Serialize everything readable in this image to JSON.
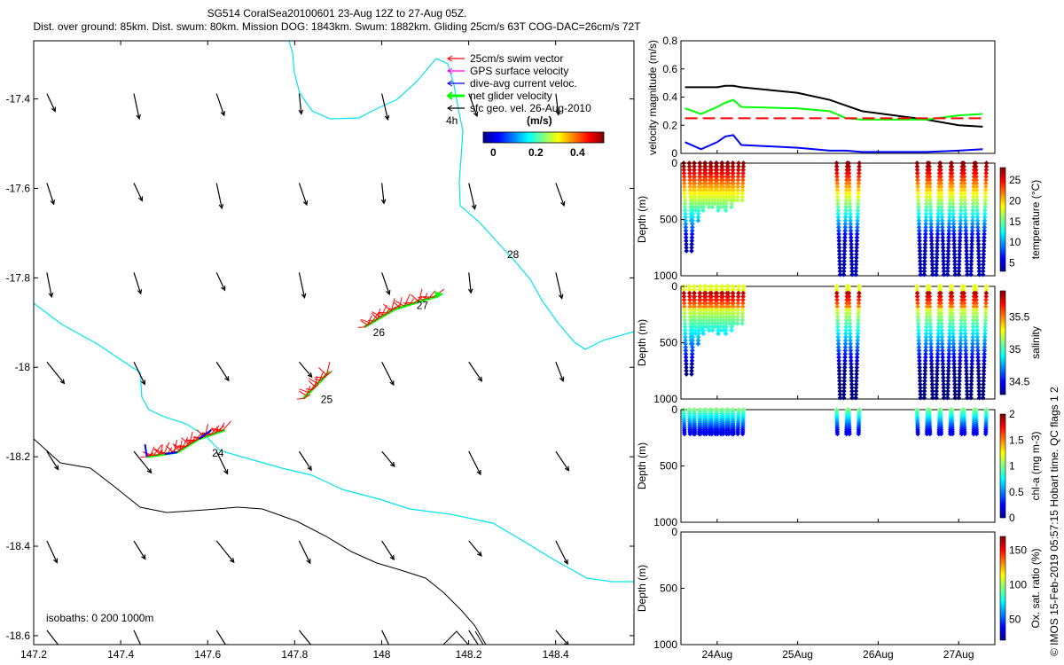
{
  "header": {
    "line1": "SG514 CoralSea20100601 23-Aug 12Z to 27-Aug 05Z.",
    "line2": "Dist. over ground: 85km. Dist. swum: 80km. Mission DOG: 1843km. Swum: 1882km. Gliding 25cm/s 63T COG-DAC=26cm/s 72T"
  },
  "credit": "© IMOS 15-Feb-2019 05:57:15 Hobart time. QC flags 1  2",
  "colors": {
    "coastline": "#00e5ee",
    "isobath": "#000000",
    "swim": "#ff0000",
    "gps": "#ff00ff",
    "dac": "#0000ff",
    "net": "#00ff00",
    "sfc": "#000000"
  },
  "chart_data": [
    {
      "type": "scatter",
      "title": "",
      "xlabel": "",
      "ylabel": "",
      "xlim": [
        147.2,
        148.58
      ],
      "ylim": [
        -18.62,
        -17.27
      ],
      "xticks": [
        "147.2",
        "147.4",
        "147.6",
        "147.8",
        "148",
        "148.2",
        "148.4"
      ],
      "yticks": [
        "-17.4",
        "-17.6",
        "-17.8",
        "-18",
        "-18.2",
        "-18.4",
        "-18.6"
      ],
      "legend": {
        "placement": "top-right",
        "entries": [
          "25cm/s swim vector",
          "GPS surface velocity",
          "dive-avg current veloc.",
          "net glider velocity",
          "sfc geo. vel. 26-Aug-2010"
        ],
        "scale_label": "4h"
      },
      "colorbar": {
        "title": "(m/s)",
        "ticks": [
          "0",
          "0.2",
          "0.4"
        ]
      },
      "annotations": [
        "24",
        "25",
        "26",
        "27",
        "28"
      ],
      "isobath_label": "isobaths: 0   200  1000m",
      "track": [
        [
          147.46,
          -18.2
        ],
        [
          147.53,
          -18.19
        ],
        [
          147.58,
          -18.16
        ],
        [
          147.64,
          -18.14
        ],
        [
          147.82,
          -18.07
        ],
        [
          147.88,
          -18.01
        ],
        [
          147.96,
          -17.91
        ],
        [
          148.03,
          -17.87
        ],
        [
          148.13,
          -17.84
        ]
      ],
      "day_markers": [
        {
          "label": "24",
          "x": 147.61,
          "y": -18.2
        },
        {
          "label": "25",
          "x": 147.86,
          "y": -18.08
        },
        {
          "label": "26",
          "x": 147.98,
          "y": -17.93
        },
        {
          "label": "27",
          "x": 148.08,
          "y": -17.87
        }
      ],
      "sfc_vectors_grid": {
        "x": [
          147.21,
          147.41,
          147.6,
          147.79,
          147.98,
          148.18,
          148.38
        ],
        "y": [
          -17.4,
          -17.6,
          -17.8,
          -18.0,
          -18.2,
          -18.4,
          -18.6
        ]
      }
    },
    {
      "type": "line",
      "xlabel": "",
      "ylabel": "velocity magnitude (m/s)",
      "ylim": [
        0,
        0.8
      ],
      "yticks": [
        "0",
        "0.2",
        "0.4",
        "0.6",
        "0.8"
      ],
      "x": [
        23.6,
        23.8,
        24.0,
        24.1,
        24.2,
        24.3,
        25.0,
        25.4,
        25.6,
        25.8,
        26.2,
        26.6,
        27.0,
        27.3
      ],
      "series": [
        {
          "color": "#000000",
          "values": [
            0.47,
            0.47,
            0.47,
            0.48,
            0.48,
            0.47,
            0.43,
            0.38,
            0.34,
            0.3,
            0.27,
            0.24,
            0.2,
            0.19
          ]
        },
        {
          "color": "#00ff00",
          "values": [
            0.32,
            0.28,
            0.33,
            0.36,
            0.38,
            0.33,
            0.32,
            0.3,
            0.25,
            0.24,
            0.24,
            0.24,
            0.27,
            0.28
          ]
        },
        {
          "color": "#0000ff",
          "values": [
            0.08,
            0.03,
            0.08,
            0.12,
            0.13,
            0.06,
            0.04,
            0.02,
            0.02,
            0.01,
            0.01,
            0.01,
            0.02,
            0.03
          ]
        },
        {
          "color": "#ff0000",
          "values": [
            0.25,
            0.25,
            0.25,
            0.25,
            0.25,
            0.25,
            0.25,
            0.25,
            0.25,
            0.25,
            0.25,
            0.25,
            0.25,
            0.25
          ]
        }
      ]
    },
    {
      "type": "scatter",
      "ylabel": "Depth (m)",
      "colorbar_label": "temperature (°C)",
      "yticks": [
        "0",
        "500",
        "1000"
      ],
      "cbar_ticks": [
        "5",
        "10",
        "15",
        "20",
        "25"
      ],
      "cmin": 3,
      "cmax": 28
    },
    {
      "type": "scatter",
      "ylabel": "Depth (m)",
      "colorbar_label": "salinity",
      "yticks": [
        "0",
        "500",
        "1000"
      ],
      "cbar_ticks": [
        "34.5",
        "35",
        "35.5"
      ],
      "cmin": 34.3,
      "cmax": 35.9
    },
    {
      "type": "scatter",
      "ylabel": "Depth (m)",
      "colorbar_label": "chl-a (mg m-3)",
      "yticks": [
        "0",
        "500",
        "1000"
      ],
      "cbar_ticks": [
        "0",
        "0.5",
        "1",
        "1.5",
        "2"
      ],
      "cmin": 0,
      "cmax": 2
    },
    {
      "type": "scatter",
      "ylabel": "Depth (m)",
      "colorbar_label": "Ox. sat. ratio (%)",
      "yticks": [
        "0",
        "500",
        "1000"
      ],
      "cbar_ticks": [
        "50",
        "100",
        "150"
      ],
      "cmin": 20,
      "cmax": 170,
      "xticks": [
        "24Aug",
        "25Aug",
        "26Aug",
        "27Aug"
      ],
      "xlim": [
        23.55,
        27.45
      ]
    }
  ]
}
